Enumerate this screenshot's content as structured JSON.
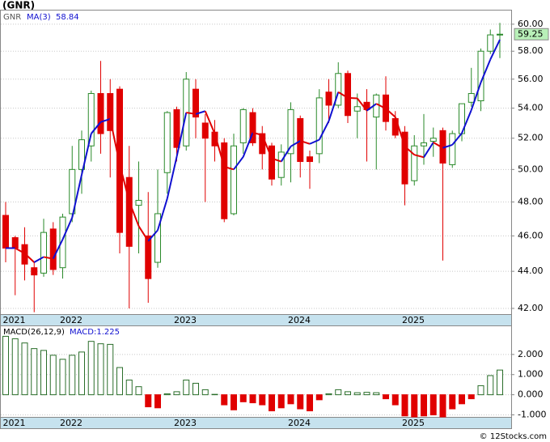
{
  "chart_data": [
    {
      "type": "candlestick",
      "title": "(GNR)",
      "ticker": "GNR",
      "ma_name": "MA(3)",
      "log": true,
      "grid": true,
      "categories": [
        "2021",
        null,
        null,
        null,
        null,
        null,
        "2022",
        null,
        null,
        null,
        null,
        null,
        null,
        null,
        null,
        null,
        null,
        null,
        "2023",
        null,
        null,
        null,
        null,
        null,
        null,
        null,
        null,
        null,
        null,
        null,
        "2024",
        null,
        null,
        null,
        null,
        null,
        null,
        null,
        null,
        null,
        null,
        null,
        "2025",
        null,
        null,
        null,
        null,
        null,
        null,
        null,
        null,
        null,
        null
      ],
      "open": [
        47.2,
        45.9,
        45.5,
        44.2,
        43.9,
        46.4,
        44.2,
        47.3,
        50.0,
        51.5,
        55.0,
        55.0,
        55.3,
        49.5,
        47.8,
        46.0,
        44.5,
        49.8,
        53.9,
        51.5,
        55.3,
        53.0,
        52.4,
        51.7,
        47.3,
        51.7,
        53.7,
        52.3,
        51.5,
        49.5,
        51.0,
        53.3,
        50.8,
        51.0,
        55.1,
        54.2,
        56.4,
        53.8,
        54.4,
        53.4,
        54.9,
        53.3,
        52.4,
        49.3,
        51.5,
        51.8,
        52.5,
        50.3,
        52.3,
        54.4,
        54.5,
        58.0,
        59.2
      ],
      "high": [
        48.0,
        46.0,
        46.5,
        44.5,
        47.0,
        46.8,
        47.3,
        51.5,
        52.5,
        55.2,
        57.3,
        56.0,
        55.5,
        51.5,
        50.5,
        48.6,
        50.0,
        53.8,
        54.1,
        56.5,
        56.0,
        53.6,
        53.2,
        52.0,
        52.3,
        54.0,
        54.0,
        52.8,
        51.7,
        51.6,
        54.4,
        53.5,
        51.2,
        55.3,
        56.0,
        57.2,
        56.6,
        55.0,
        55.3,
        55.0,
        56.2,
        53.8,
        52.8,
        52.2,
        53.6,
        52.7,
        52.7,
        52.5,
        54.3,
        56.8,
        58.2,
        59.6,
        60.1
      ],
      "low": [
        44.5,
        42.7,
        43.5,
        41.8,
        43.7,
        43.8,
        43.6,
        46.8,
        48.5,
        50.5,
        51.0,
        49.5,
        45.0,
        42.0,
        45.0,
        42.3,
        44.2,
        48.5,
        50.5,
        51.2,
        52.0,
        48.0,
        50.5,
        46.8,
        47.2,
        51.0,
        51.5,
        50.0,
        49.0,
        49.0,
        49.2,
        49.5,
        48.8,
        50.4,
        53.0,
        54.0,
        53.0,
        52.0,
        50.5,
        50.0,
        52.5,
        52.0,
        47.8,
        49.0,
        50.3,
        50.8,
        44.6,
        50.1,
        51.8,
        54.1,
        53.8,
        57.8,
        57.5
      ],
      "close": [
        45.3,
        45.3,
        44.4,
        43.8,
        46.2,
        44.1,
        47.1,
        50.0,
        51.9,
        55.0,
        52.3,
        52.5,
        46.2,
        45.4,
        48.1,
        43.6,
        47.3,
        53.7,
        51.4,
        56.0,
        53.4,
        52.0,
        51.5,
        47.0,
        51.5,
        53.9,
        51.7,
        51.0,
        49.4,
        51.1,
        53.9,
        50.5,
        50.5,
        54.7,
        54.2,
        56.4,
        53.5,
        54.1,
        53.9,
        54.9,
        53.1,
        52.2,
        49.1,
        51.5,
        51.7,
        52.0,
        50.4,
        52.3,
        54.3,
        55.0,
        58.0,
        59.2,
        59.25
      ],
      "ma": [
        45.3,
        45.3,
        45.0,
        44.5,
        44.8,
        44.7,
        45.8,
        47.07,
        49.67,
        52.3,
        53.07,
        53.27,
        50.33,
        48.03,
        46.57,
        45.7,
        46.33,
        48.2,
        50.8,
        53.7,
        53.6,
        53.8,
        52.3,
        50.17,
        50.0,
        50.8,
        52.37,
        52.2,
        50.7,
        50.5,
        51.47,
        51.83,
        51.63,
        51.9,
        53.13,
        55.1,
        54.7,
        54.67,
        53.83,
        54.3,
        53.97,
        53.4,
        51.47,
        50.93,
        50.77,
        51.73,
        51.37,
        51.57,
        52.33,
        53.87,
        55.77,
        57.4,
        58.84
      ],
      "up_color": "#2a8a2a",
      "down_color": "#e00000",
      "ma_up_color": "#1010d0",
      "ma_down_color": "#e00000",
      "ylim": [
        41.7,
        61.1
      ],
      "yticks": [
        {
          "value": 42,
          "label": "42.00"
        },
        {
          "value": 44,
          "label": "44.00"
        },
        {
          "value": 46,
          "label": "46.00"
        },
        {
          "value": 48,
          "label": "48.00"
        },
        {
          "value": 50,
          "label": "50.00"
        },
        {
          "value": 52,
          "label": "52.00"
        },
        {
          "value": 54,
          "label": "54.00"
        },
        {
          "value": 56,
          "label": "56.00"
        },
        {
          "value": 58,
          "label": "58.00"
        },
        {
          "value": 60,
          "label": "60.00"
        }
      ]
    },
    {
      "type": "bar",
      "name": "MACD(26,12,9)",
      "value_label": "MACD:1.225",
      "grid": true,
      "values": [
        2.9,
        2.78,
        2.57,
        2.29,
        2.2,
        1.96,
        1.76,
        1.96,
        2.12,
        2.65,
        2.53,
        2.5,
        1.35,
        0.73,
        0.4,
        -0.6,
        -0.65,
        0.05,
        0.15,
        0.73,
        0.57,
        0.25,
        0.02,
        -0.5,
        -0.75,
        -0.35,
        -0.4,
        -0.5,
        -0.8,
        -0.65,
        -0.45,
        -0.7,
        -0.8,
        -0.25,
        0.05,
        0.25,
        0.15,
        0.1,
        0.12,
        0.1,
        -0.2,
        -0.5,
        -1.05,
        -1.1,
        -1.05,
        -1.0,
        -1.1,
        -0.7,
        -0.45,
        -0.2,
        0.45,
        0.95,
        1.225
      ],
      "up_color": "#2a6e2a",
      "down_color": "#e00000",
      "ylim": [
        -1.1,
        3.4
      ],
      "yticks": [
        {
          "value": -1,
          "label": "-1.000"
        },
        {
          "value": 0,
          "label": "0.000"
        },
        {
          "value": 1,
          "label": "1.000"
        },
        {
          "value": 2,
          "label": "2.000"
        }
      ]
    }
  ],
  "footer": "© 12Stocks.com"
}
